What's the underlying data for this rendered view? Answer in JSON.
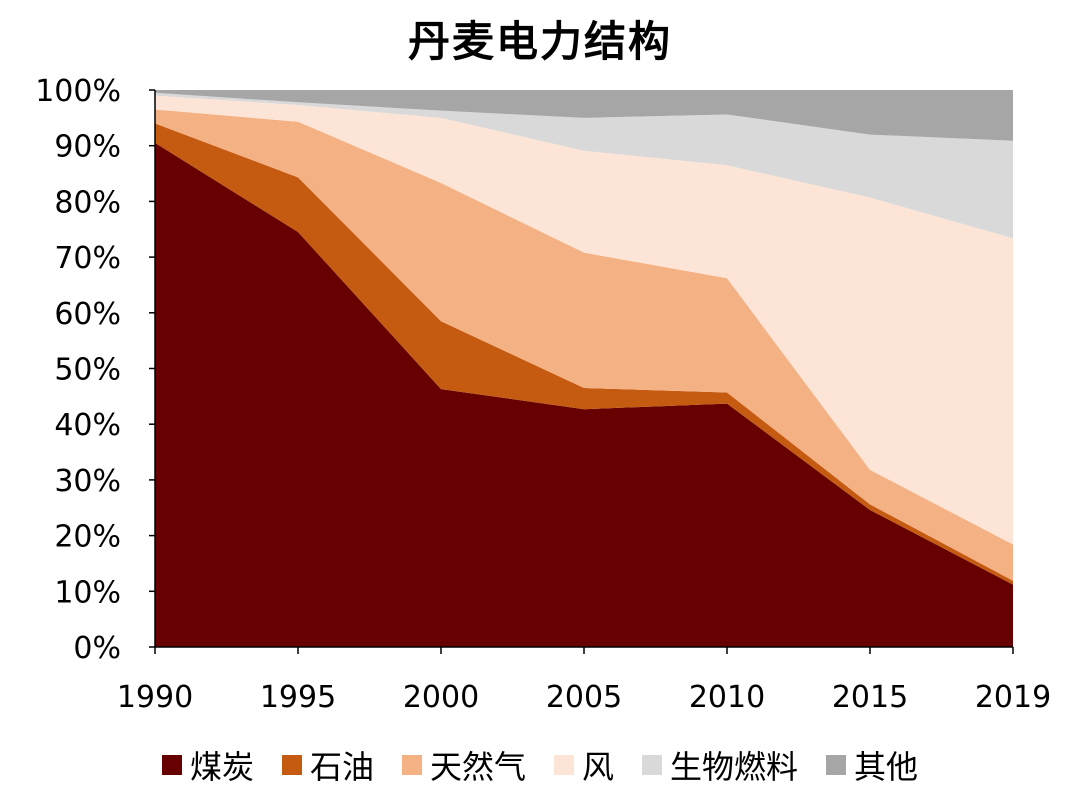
{
  "chart_data": {
    "type": "area",
    "stacked": true,
    "title": "丹麦电力结构",
    "xlabel": "",
    "ylabel": "",
    "categories": [
      "1990",
      "1995",
      "2000",
      "2005",
      "2010",
      "2015",
      "2019"
    ],
    "ylim": [
      0,
      100
    ],
    "yticks": [
      "0%",
      "10%",
      "20%",
      "30%",
      "40%",
      "50%",
      "60%",
      "70%",
      "80%",
      "90%",
      "100%"
    ],
    "grid": false,
    "legend_position": "bottom",
    "series": [
      {
        "name": "煤炭",
        "color": "#670000",
        "values": [
          90.5,
          74.5,
          46.3,
          42.7,
          43.7,
          24.6,
          11.2
        ]
      },
      {
        "name": "石油",
        "color": "#C55A11",
        "values": [
          3.5,
          9.8,
          12.2,
          3.8,
          2.0,
          1.0,
          0.7
        ]
      },
      {
        "name": "天然气",
        "color": "#F4B183",
        "values": [
          2.5,
          10.0,
          24.8,
          24.3,
          20.5,
          6.2,
          6.5
        ]
      },
      {
        "name": "风",
        "color": "#FCE4D6",
        "values": [
          2.5,
          3.0,
          11.7,
          18.3,
          20.3,
          48.9,
          55.0
        ]
      },
      {
        "name": "生物燃料",
        "color": "#D9D9D9",
        "values": [
          0.5,
          0.5,
          1.3,
          5.9,
          9.1,
          11.3,
          17.5
        ]
      },
      {
        "name": "其他",
        "color": "#A6A6A6",
        "values": [
          0.5,
          2.2,
          3.7,
          5.0,
          4.4,
          8.0,
          9.1
        ]
      }
    ]
  }
}
